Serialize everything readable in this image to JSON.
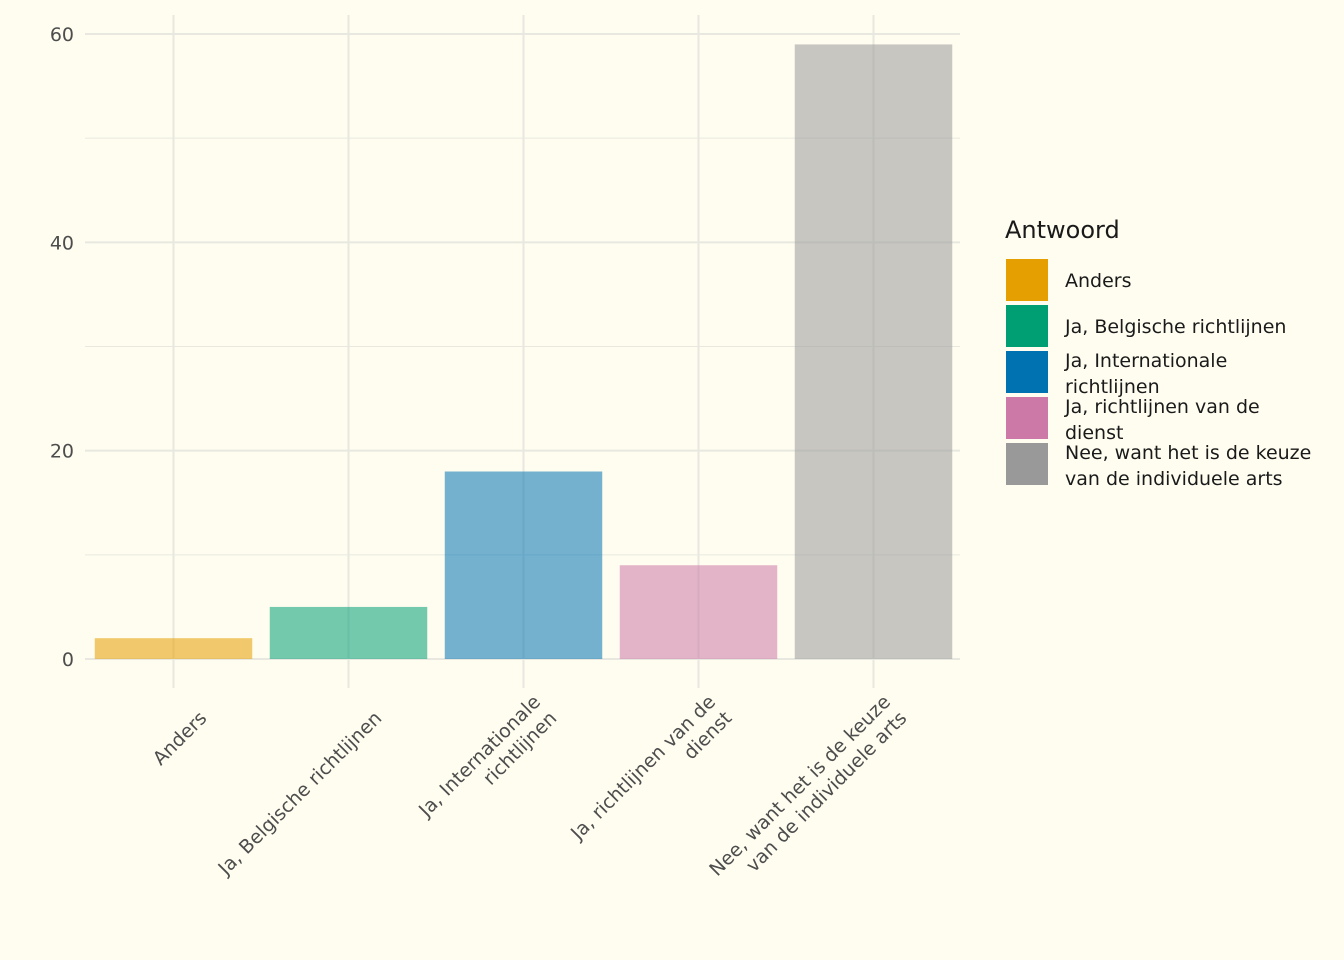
{
  "chart_data": {
    "type": "bar",
    "categories": [
      [
        "Anders"
      ],
      [
        "Ja, Belgische richtlijnen"
      ],
      [
        "Ja, Internationale",
        "richtlijnen"
      ],
      [
        "Ja, richtlijnen van de",
        "dienst"
      ],
      [
        "Nee, want het is de keuze",
        "van de individuele arts"
      ]
    ],
    "values": [
      2,
      5,
      18,
      9,
      59
    ],
    "colors": [
      "#E69F00",
      "#009E73",
      "#0072B2",
      "#CC79A7",
      "#999999"
    ],
    "bar_opacity": 0.55,
    "ylim": [
      0,
      62
    ],
    "yticks": [
      0,
      20,
      40,
      60
    ],
    "minor_yticks": [
      10,
      30,
      50
    ],
    "grid": true,
    "title": "",
    "xlabel": "",
    "ylabel": "",
    "legend": {
      "title": "Antwoord",
      "position": "right",
      "items": [
        [
          "Anders"
        ],
        [
          "Ja, Belgische richtlijnen"
        ],
        [
          "Ja, Internationale",
          "richtlijnen"
        ],
        [
          "Ja, richtlijnen van de",
          "dienst"
        ],
        [
          "Nee, want het is de keuze",
          "van de individuele arts"
        ]
      ]
    },
    "background": "#fffdf0",
    "gridline_color": "#e8e8e0"
  }
}
